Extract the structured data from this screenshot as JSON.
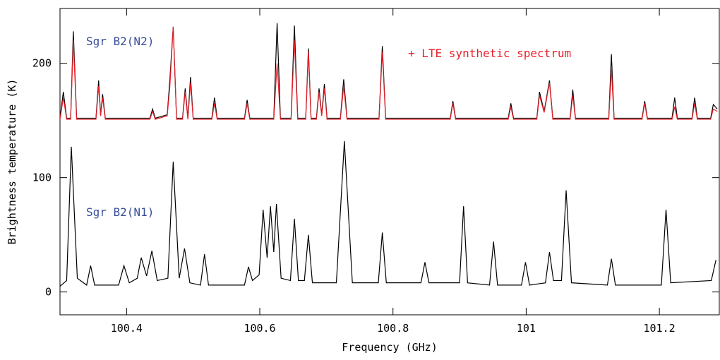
{
  "chart_data": {
    "type": "line",
    "xlabel": "Frequency (GHz)",
    "ylabel": "Brightness temperature (K)",
    "xlim": [
      100.3,
      101.29
    ],
    "ylim": [
      -20,
      248
    ],
    "xticks": [
      100.4,
      100.6,
      100.8,
      101,
      101.2
    ],
    "yticks": [
      0,
      100,
      200
    ],
    "annotations": [
      {
        "text": "Sgr B2(N2)",
        "color": "#3a4f9a"
      },
      {
        "text": "+ LTE synthetic spectrum",
        "color": "#e8202a"
      },
      {
        "text": "Sgr B2(N1)",
        "color": "#3a4f9a"
      }
    ],
    "series": [
      {
        "color": "#000000",
        "x": [
          100.3,
          100.31,
          100.317,
          100.326,
          100.34,
          100.346,
          100.352,
          100.388,
          100.396,
          100.404,
          100.416,
          100.422,
          100.43,
          100.438,
          100.446,
          100.462,
          100.47,
          100.479,
          100.487,
          100.495,
          100.511,
          100.517,
          100.523,
          100.577,
          100.583,
          100.589,
          100.599,
          100.605,
          100.611,
          100.616,
          100.621,
          100.625,
          100.632,
          100.646,
          100.652,
          100.658,
          100.667,
          100.673,
          100.679,
          100.715,
          100.727,
          100.739,
          100.778,
          100.784,
          100.79,
          100.842,
          100.848,
          100.854,
          100.9,
          100.906,
          100.912,
          100.945,
          100.951,
          100.957,
          100.993,
          100.999,
          101.005,
          101.029,
          101.035,
          101.041,
          101.053,
          101.06,
          101.068,
          101.122,
          101.128,
          101.134,
          101.203,
          101.21,
          101.217,
          101.278,
          101.285
        ],
        "values": [
          5,
          10,
          127,
          12,
          6,
          23,
          6,
          6,
          23,
          8,
          12,
          30,
          14,
          36,
          10,
          12,
          114,
          12,
          38,
          8,
          6,
          33,
          6,
          6,
          22,
          10,
          15,
          72,
          30,
          75,
          35,
          77,
          12,
          10,
          64,
          10,
          10,
          50,
          8,
          8,
          132,
          8,
          8,
          52,
          8,
          8,
          26,
          8,
          8,
          75,
          8,
          6,
          44,
          6,
          6,
          26,
          6,
          8,
          35,
          10,
          10,
          89,
          8,
          6,
          29,
          6,
          6,
          72,
          8,
          10,
          28
        ]
      },
      {
        "color": "#000000",
        "x": [
          100.3,
          100.305,
          100.31,
          100.316,
          100.32,
          100.325,
          100.354,
          100.358,
          100.361,
          100.364,
          100.368,
          100.435,
          100.439,
          100.443,
          100.461,
          100.465,
          100.47,
          100.475,
          100.484,
          100.488,
          100.492,
          100.496,
          100.5,
          100.528,
          100.532,
          100.536,
          100.577,
          100.581,
          100.585,
          100.621,
          100.626,
          100.631,
          100.647,
          100.652,
          100.657,
          100.669,
          100.673,
          100.677,
          100.685,
          100.689,
          100.693,
          100.697,
          100.701,
          100.721,
          100.726,
          100.731,
          100.779,
          100.784,
          100.789,
          100.886,
          100.89,
          100.894,
          100.973,
          100.977,
          100.981,
          101.016,
          101.02,
          101.027,
          101.035,
          101.04,
          101.066,
          101.07,
          101.074,
          101.124,
          101.128,
          101.132,
          101.174,
          101.178,
          101.182,
          101.219,
          101.223,
          101.227,
          101.249,
          101.253,
          101.257,
          101.277,
          101.281,
          101.287
        ],
        "values": [
          152,
          175,
          152,
          152,
          228,
          152,
          152,
          185,
          155,
          173,
          152,
          152,
          160,
          152,
          155,
          186,
          232,
          152,
          152,
          178,
          152,
          188,
          152,
          152,
          170,
          152,
          152,
          168,
          152,
          152,
          235,
          152,
          152,
          233,
          152,
          152,
          213,
          152,
          152,
          178,
          155,
          182,
          152,
          152,
          186,
          152,
          152,
          215,
          152,
          152,
          167,
          152,
          152,
          165,
          152,
          152,
          175,
          158,
          185,
          152,
          152,
          177,
          152,
          152,
          208,
          152,
          152,
          167,
          152,
          152,
          170,
          152,
          152,
          170,
          152,
          152,
          164,
          160
        ]
      },
      {
        "color": "#e8202a",
        "x": [
          100.3,
          100.305,
          100.31,
          100.316,
          100.32,
          100.325,
          100.354,
          100.358,
          100.361,
          100.364,
          100.368,
          100.435,
          100.439,
          100.443,
          100.461,
          100.465,
          100.47,
          100.475,
          100.484,
          100.488,
          100.492,
          100.496,
          100.5,
          100.528,
          100.532,
          100.536,
          100.577,
          100.581,
          100.585,
          100.621,
          100.626,
          100.631,
          100.647,
          100.652,
          100.657,
          100.669,
          100.673,
          100.677,
          100.685,
          100.689,
          100.693,
          100.697,
          100.701,
          100.721,
          100.726,
          100.731,
          100.779,
          100.784,
          100.789,
          100.886,
          100.89,
          100.894,
          100.973,
          100.977,
          100.981,
          101.016,
          101.02,
          101.027,
          101.035,
          101.04,
          101.066,
          101.07,
          101.074,
          101.124,
          101.128,
          101.132,
          101.174,
          101.178,
          101.182,
          101.219,
          101.223,
          101.227,
          101.249,
          101.253,
          101.257,
          101.277,
          101.281,
          101.287
        ],
        "values": [
          151,
          170,
          151,
          151,
          220,
          151,
          151,
          180,
          154,
          170,
          151,
          151,
          158,
          151,
          154,
          180,
          232,
          151,
          151,
          175,
          151,
          183,
          151,
          151,
          165,
          151,
          151,
          165,
          151,
          151,
          200,
          151,
          151,
          220,
          151,
          151,
          210,
          151,
          151,
          175,
          154,
          178,
          151,
          151,
          180,
          151,
          151,
          210,
          151,
          151,
          165,
          151,
          151,
          162,
          151,
          151,
          172,
          157,
          183,
          151,
          151,
          172,
          151,
          151,
          195,
          151,
          151,
          165,
          151,
          151,
          162,
          151,
          151,
          165,
          151,
          151,
          160,
          158
        ]
      }
    ]
  }
}
